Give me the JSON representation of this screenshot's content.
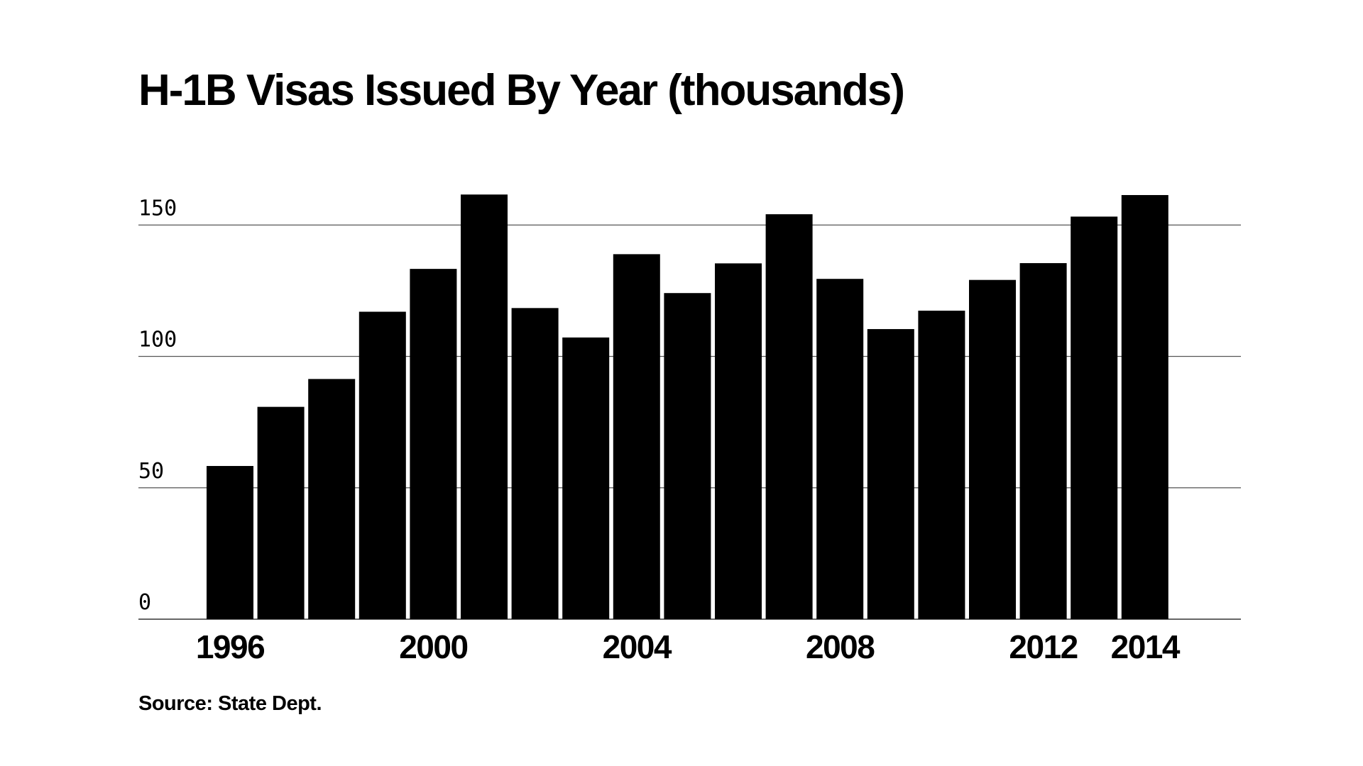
{
  "chart_data": {
    "type": "bar",
    "title": "H-1B Visas Issued By Year (thousands)",
    "source": "Source: State Dept.",
    "xlabel": "",
    "ylabel": "",
    "x_tick_labels": [
      "1996",
      "2000",
      "2004",
      "2008",
      "2012",
      "2014"
    ],
    "y_ticks": [
      0,
      50,
      100,
      150
    ],
    "ylim": [
      0,
      165
    ],
    "grid": true,
    "bar_color": "#000000",
    "categories": [
      "1996",
      "1997",
      "1998",
      "1999",
      "2000",
      "2001",
      "2002",
      "2003",
      "2004",
      "2005",
      "2006",
      "2007",
      "2008",
      "2009",
      "2010",
      "2011",
      "2012",
      "2013",
      "2014"
    ],
    "values": [
      58.3,
      80.8,
      91.4,
      117.0,
      133.3,
      161.6,
      118.4,
      107.2,
      138.9,
      124.1,
      135.4,
      154.1,
      129.5,
      110.4,
      117.4,
      129.1,
      135.5,
      153.2,
      161.4
    ]
  }
}
